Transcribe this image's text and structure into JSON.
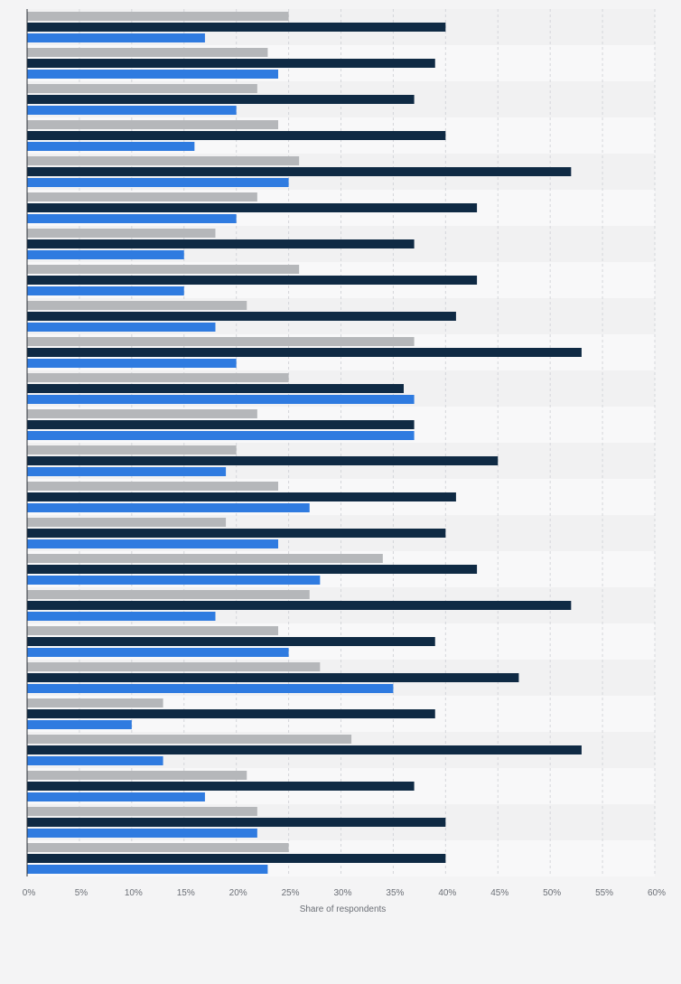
{
  "chart_data": {
    "type": "bar",
    "orientation": "horizontal",
    "xlabel": "Share of respondents",
    "xlim": [
      0,
      60
    ],
    "x_ticks": [
      "0%",
      "5%",
      "10%",
      "15%",
      "20%",
      "25%",
      "30%",
      "35%",
      "40%",
      "45%",
      "50%",
      "55%",
      "60%"
    ],
    "grid": true,
    "legend": "none",
    "category_count": 24,
    "series": [
      {
        "color": "#b5b7ba",
        "values": [
          25,
          23,
          22,
          24,
          26,
          22,
          18,
          26,
          21,
          37,
          25,
          22,
          20,
          24,
          19,
          34,
          27,
          24,
          28,
          13,
          31,
          21,
          22,
          25
        ]
      },
      {
        "color": "#0f2a44",
        "values": [
          40,
          39,
          37,
          40,
          52,
          43,
          37,
          43,
          41,
          53,
          36,
          37,
          45,
          41,
          40,
          43,
          52,
          39,
          47,
          39,
          53,
          37,
          40,
          40
        ]
      },
      {
        "color": "#2f7be0",
        "values": [
          17,
          24,
          20,
          16,
          25,
          20,
          15,
          15,
          18,
          20,
          37,
          37,
          19,
          27,
          24,
          28,
          18,
          25,
          35,
          10,
          13,
          17,
          22,
          23
        ]
      }
    ]
  }
}
